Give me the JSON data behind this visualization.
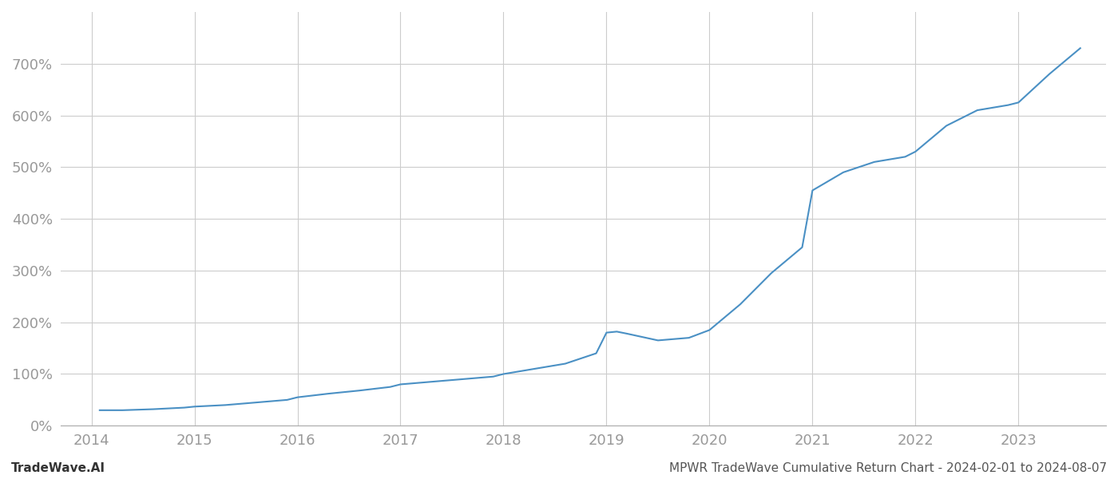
{
  "title": "MPWR TradeWave Cumulative Return Chart - 2024-02-01 to 2024-08-07",
  "watermark": "TradeWave.AI",
  "line_color": "#4a90c4",
  "background_color": "#ffffff",
  "grid_color": "#cccccc",
  "x_years": [
    2014,
    2015,
    2016,
    2017,
    2018,
    2019,
    2020,
    2021,
    2022,
    2023
  ],
  "x_values": [
    2014.08,
    2014.3,
    2014.6,
    2014.9,
    2015.0,
    2015.3,
    2015.6,
    2015.9,
    2016.0,
    2016.3,
    2016.6,
    2016.9,
    2017.0,
    2017.3,
    2017.6,
    2017.9,
    2018.0,
    2018.3,
    2018.6,
    2018.9,
    2019.0,
    2019.1,
    2019.2,
    2019.5,
    2019.8,
    2020.0,
    2020.3,
    2020.6,
    2020.9,
    2021.0,
    2021.3,
    2021.6,
    2021.9,
    2022.0,
    2022.3,
    2022.6,
    2022.9,
    2023.0,
    2023.3,
    2023.6
  ],
  "y_values": [
    30,
    30,
    32,
    35,
    37,
    40,
    45,
    50,
    55,
    62,
    68,
    75,
    80,
    85,
    90,
    95,
    100,
    110,
    120,
    140,
    180,
    182,
    178,
    165,
    170,
    185,
    235,
    295,
    345,
    455,
    490,
    510,
    520,
    530,
    580,
    610,
    620,
    625,
    680,
    730
  ],
  "ylim": [
    0,
    800
  ],
  "yticks": [
    0,
    100,
    200,
    300,
    400,
    500,
    600,
    700
  ],
  "xlim": [
    2013.7,
    2023.85
  ],
  "title_fontsize": 11,
  "watermark_fontsize": 11,
  "tick_fontsize": 13,
  "axis_label_color": "#999999",
  "title_color": "#555555"
}
